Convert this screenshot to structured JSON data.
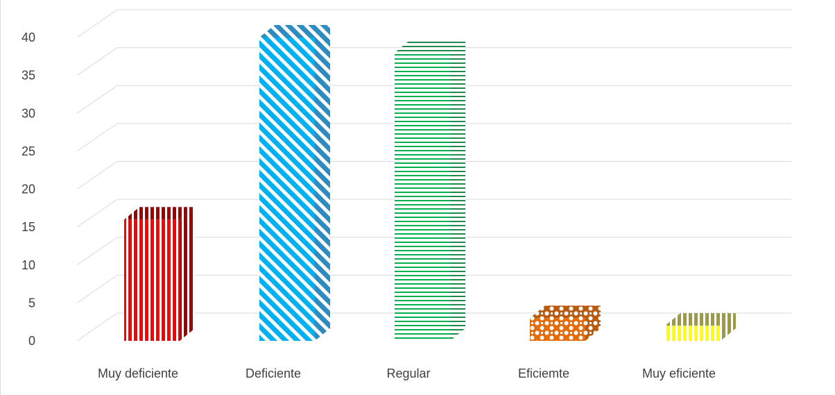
{
  "chart_data": {
    "type": "bar",
    "style": "3d-column",
    "categories": [
      "Muy deficiente",
      "Deficiente",
      "Regular",
      "Eficiemte",
      "Muy eficiente"
    ],
    "values": [
      16,
      40,
      38,
      3,
      2
    ],
    "ylim": [
      0,
      40
    ],
    "yticks": [
      0,
      5,
      10,
      15,
      20,
      25,
      30,
      35,
      40
    ],
    "grid": true,
    "legend": "none",
    "title": "",
    "xlabel": "",
    "ylabel": "",
    "colors": [
      "#ff0000",
      "#00b0f0",
      "#00b050",
      "#e36c09",
      "#ffff00"
    ],
    "side_colors": [
      "#a00000",
      "#2e8bc0",
      "#1f8a4c",
      "#b85a10",
      "#9c9c3a"
    ],
    "patterns": [
      "vertical-stripes",
      "diagonal-stripes",
      "horizontal-stripes",
      "checker",
      "vertical-stripes"
    ]
  }
}
